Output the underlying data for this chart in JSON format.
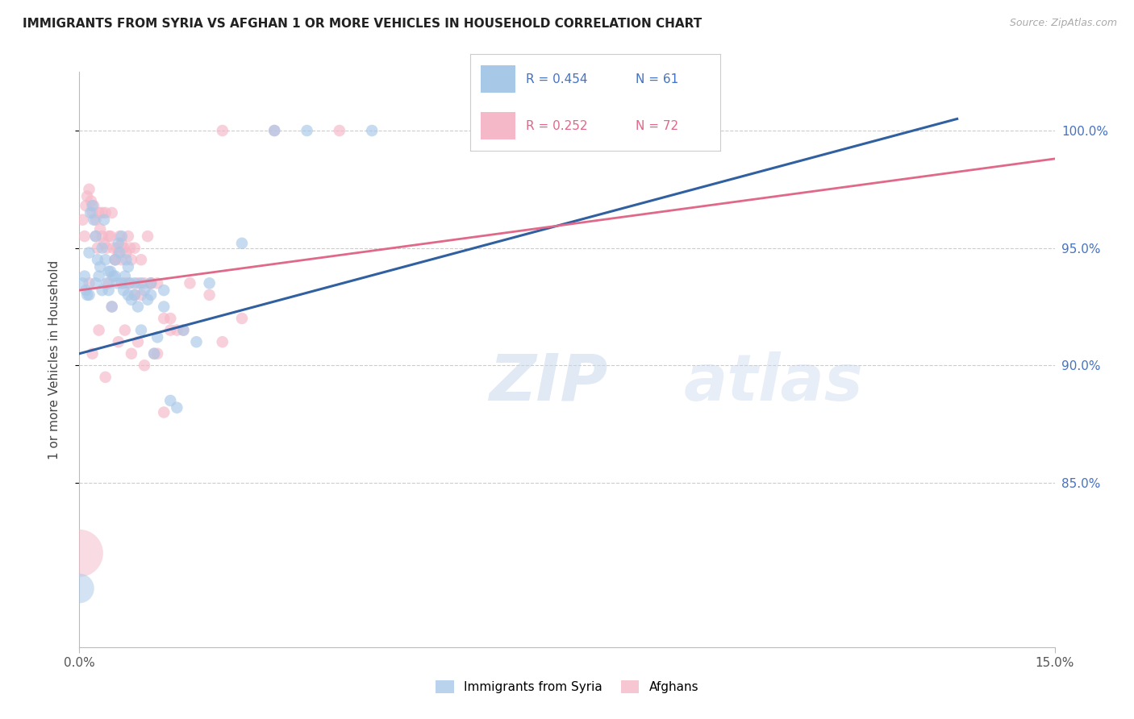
{
  "title": "IMMIGRANTS FROM SYRIA VS AFGHAN 1 OR MORE VEHICLES IN HOUSEHOLD CORRELATION CHART",
  "source": "Source: ZipAtlas.com",
  "ylabel_tick_vals": [
    85.0,
    90.0,
    95.0,
    100.0
  ],
  "xmin": 0.0,
  "xmax": 15.0,
  "ymin": 78.0,
  "ymax": 102.5,
  "legend_blue_r": "0.454",
  "legend_blue_n": "61",
  "legend_pink_r": "0.252",
  "legend_pink_n": "72",
  "blue_color": "#a8c8e8",
  "pink_color": "#f5b8c8",
  "blue_line_color": "#3060a0",
  "pink_line_color": "#e06888",
  "blue_label": "Immigrants from Syria",
  "pink_label": "Afghans",
  "blue_line_x0": 0.0,
  "blue_line_y0": 90.5,
  "blue_line_x1": 13.5,
  "blue_line_y1": 100.5,
  "pink_line_x0": 0.0,
  "pink_line_y0": 93.2,
  "pink_line_x1": 15.0,
  "pink_line_y1": 98.8,
  "blue_points_x": [
    0.05,
    0.08,
    0.1,
    0.12,
    0.15,
    0.17,
    0.2,
    0.22,
    0.25,
    0.28,
    0.3,
    0.32,
    0.35,
    0.38,
    0.4,
    0.42,
    0.45,
    0.48,
    0.5,
    0.52,
    0.55,
    0.58,
    0.6,
    0.62,
    0.65,
    0.68,
    0.7,
    0.72,
    0.75,
    0.78,
    0.8,
    0.85,
    0.9,
    0.95,
    1.0,
    1.05,
    1.1,
    1.15,
    1.2,
    1.3,
    1.4,
    1.5,
    1.6,
    1.8,
    2.0,
    2.5,
    3.0,
    3.5,
    4.5,
    6.5,
    0.15,
    0.25,
    0.35,
    0.45,
    0.55,
    0.65,
    0.75,
    0.85,
    0.95,
    1.1,
    1.3
  ],
  "blue_points_y": [
    93.5,
    93.8,
    93.2,
    93.0,
    94.8,
    96.5,
    96.8,
    96.2,
    95.5,
    94.5,
    93.8,
    94.2,
    95.0,
    96.2,
    94.5,
    93.5,
    93.2,
    94.0,
    92.5,
    93.8,
    94.5,
    93.5,
    95.2,
    94.8,
    95.5,
    93.2,
    93.8,
    94.5,
    93.0,
    93.5,
    92.8,
    93.5,
    92.5,
    91.5,
    93.2,
    92.8,
    93.5,
    90.5,
    91.2,
    92.5,
    88.5,
    88.2,
    91.5,
    91.0,
    93.5,
    95.2,
    100.0,
    100.0,
    100.0,
    100.0,
    93.0,
    93.5,
    93.2,
    94.0,
    93.8,
    93.5,
    94.2,
    93.0,
    93.5,
    93.0,
    93.2
  ],
  "blue_large_x": [
    0.0
  ],
  "blue_large_y": [
    80.5
  ],
  "blue_large_s": [
    700
  ],
  "pink_points_x": [
    0.05,
    0.08,
    0.1,
    0.12,
    0.15,
    0.18,
    0.2,
    0.22,
    0.25,
    0.28,
    0.3,
    0.32,
    0.35,
    0.38,
    0.4,
    0.42,
    0.45,
    0.48,
    0.5,
    0.52,
    0.55,
    0.58,
    0.6,
    0.62,
    0.65,
    0.68,
    0.7,
    0.72,
    0.75,
    0.78,
    0.8,
    0.85,
    0.9,
    0.95,
    1.0,
    1.05,
    1.1,
    1.2,
    1.3,
    1.4,
    1.5,
    1.7,
    2.0,
    2.2,
    2.5,
    3.0,
    0.15,
    0.25,
    0.35,
    0.45,
    0.55,
    0.65,
    0.75,
    0.85,
    0.95,
    1.1,
    1.3,
    1.6,
    2.2,
    4.0,
    0.3,
    0.5,
    0.7,
    0.9,
    1.15,
    1.4,
    0.2,
    0.4,
    0.6,
    0.8,
    1.0,
    1.2
  ],
  "pink_points_y": [
    96.2,
    95.5,
    96.8,
    97.2,
    97.5,
    97.0,
    96.5,
    96.8,
    96.2,
    95.0,
    96.5,
    95.8,
    96.5,
    95.2,
    96.5,
    95.0,
    93.5,
    95.5,
    96.5,
    95.0,
    94.5,
    95.0,
    94.8,
    95.5,
    95.2,
    95.0,
    93.5,
    94.8,
    95.5,
    95.0,
    94.5,
    95.0,
    93.5,
    94.5,
    93.5,
    95.5,
    93.5,
    93.5,
    88.0,
    91.5,
    91.5,
    93.5,
    93.0,
    91.0,
    92.0,
    100.0,
    93.5,
    95.5,
    95.5,
    95.5,
    94.5,
    94.5,
    93.5,
    93.0,
    93.0,
    93.5,
    92.0,
    91.5,
    100.0,
    100.0,
    91.5,
    92.5,
    91.5,
    91.0,
    90.5,
    92.0,
    90.5,
    89.5,
    91.0,
    90.5,
    90.0,
    90.5
  ],
  "pink_large_x": [
    0.0
  ],
  "pink_large_y": [
    82.0
  ],
  "pink_large_s": [
    1800
  ]
}
